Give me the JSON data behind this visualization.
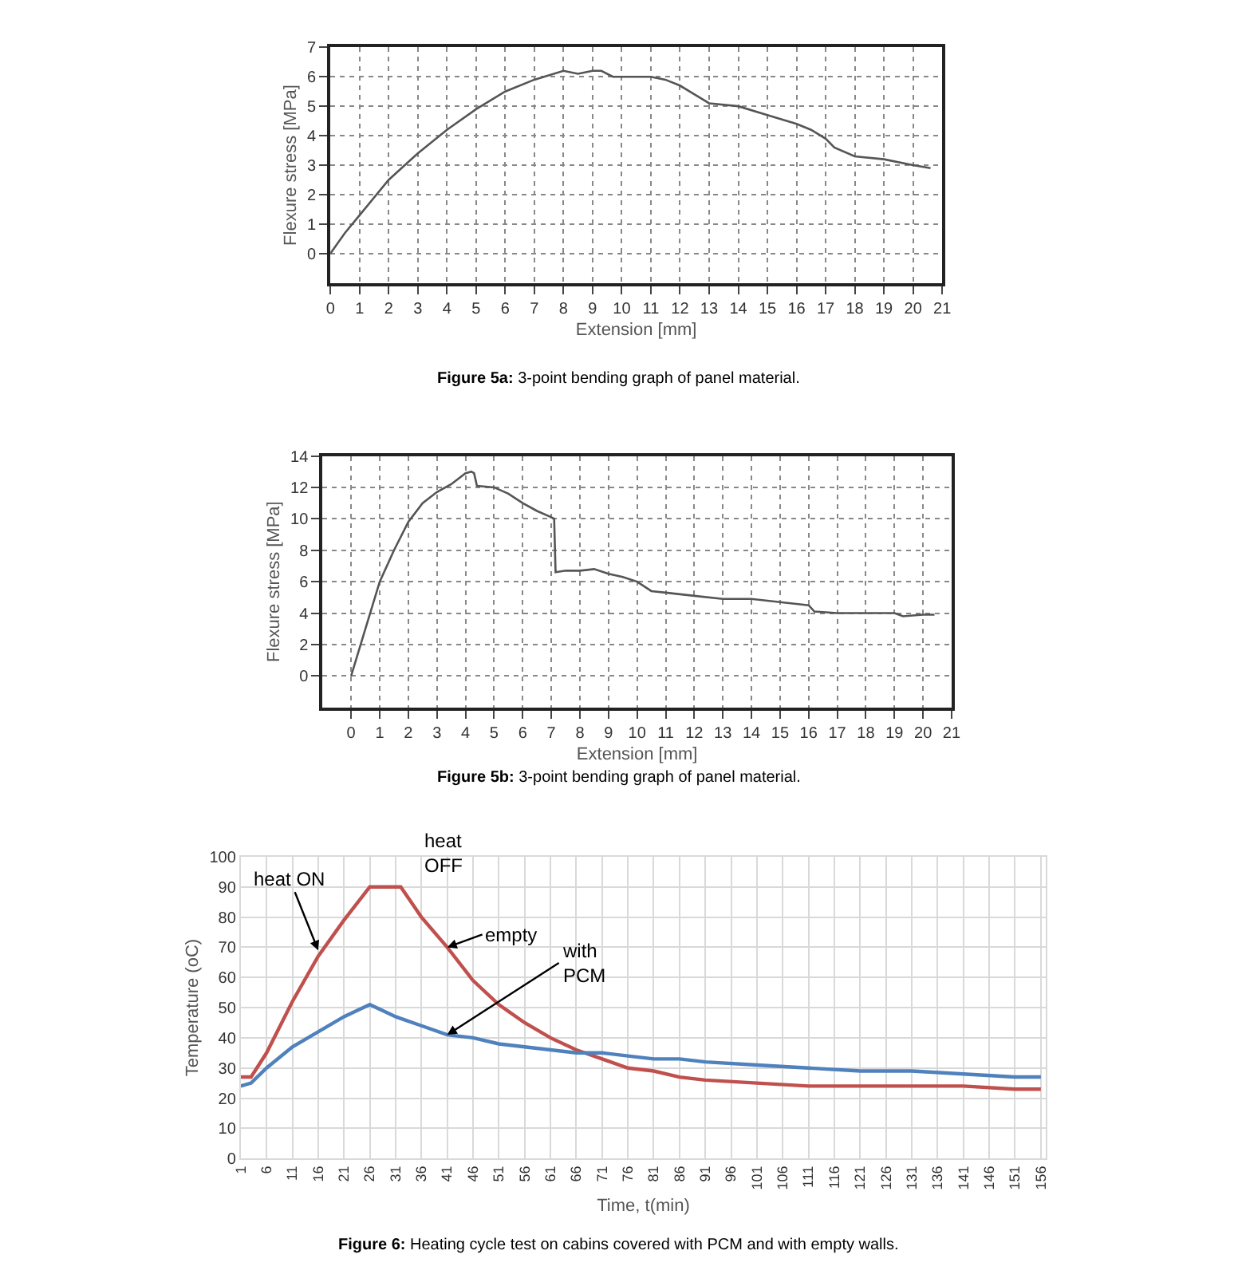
{
  "chart_data": [
    {
      "type": "line",
      "xlabel": "Extension [mm]",
      "ylabel": "Flexure stress [MPa]",
      "xlim": [
        0,
        21
      ],
      "xticks": [
        0,
        1,
        2,
        3,
        4,
        5,
        6,
        7,
        8,
        9,
        10,
        11,
        12,
        13,
        14,
        15,
        16,
        17,
        18,
        19,
        20,
        21
      ],
      "ylim": [
        -1,
        7
      ],
      "yticks": [
        0,
        1,
        2,
        3,
        4,
        5,
        6,
        7
      ],
      "grid": true,
      "legend": false,
      "marker": "none",
      "line_style": "solid",
      "series": [
        {
          "color": "#555555",
          "x": [
            0,
            0.5,
            1,
            2,
            3,
            4,
            5,
            6,
            7,
            8,
            8.5,
            9,
            9.3,
            9.7,
            10,
            11,
            11.5,
            12,
            12.5,
            13,
            14,
            15,
            16,
            16.5,
            17,
            17.3,
            18,
            19,
            20,
            20.6
          ],
          "values": [
            0,
            0.7,
            1.3,
            2.5,
            3.4,
            4.2,
            4.9,
            5.5,
            5.9,
            6.2,
            6.1,
            6.2,
            6.2,
            6.0,
            6.0,
            6.0,
            5.9,
            5.7,
            5.4,
            5.1,
            5.0,
            4.7,
            4.4,
            4.2,
            3.9,
            3.6,
            3.3,
            3.2,
            3.0,
            2.9
          ]
        }
      ],
      "annotations": [
        "Figure 5a: 3-point bending graph of panel material."
      ]
    },
    {
      "type": "line",
      "xlabel": "Extension [mm]",
      "ylabel": "Flexure stress [MPa]",
      "xlim": [
        -1,
        21
      ],
      "xticks": [
        0,
        1,
        2,
        3,
        4,
        5,
        6,
        7,
        8,
        9,
        10,
        11,
        12,
        13,
        14,
        15,
        16,
        17,
        18,
        19,
        20,
        21
      ],
      "ylim": [
        -2,
        14
      ],
      "yticks": [
        0,
        2,
        4,
        6,
        8,
        10,
        12,
        14
      ],
      "grid": true,
      "legend": false,
      "marker": "none",
      "line_style": "solid",
      "series": [
        {
          "color": "#555555",
          "x": [
            0,
            0.5,
            1,
            1.5,
            2,
            2.5,
            3,
            3.5,
            4,
            4.2,
            4.3,
            4.4,
            5,
            5.5,
            6,
            6.5,
            7,
            7.1,
            7.15,
            7.5,
            8,
            8.5,
            9,
            9.5,
            10,
            10.5,
            11,
            12,
            13,
            14,
            15,
            16,
            16.2,
            17,
            18,
            19,
            19.3,
            20,
            20.4
          ],
          "values": [
            0,
            3,
            6,
            8,
            9.8,
            11,
            11.7,
            12.2,
            12.9,
            13,
            12.9,
            12.1,
            12,
            11.6,
            11,
            10.5,
            10.1,
            10,
            6.6,
            6.7,
            6.7,
            6.8,
            6.5,
            6.3,
            6,
            5.4,
            5.3,
            5.1,
            4.9,
            4.9,
            4.7,
            4.5,
            4.1,
            4.0,
            4.0,
            4.0,
            3.8,
            3.9,
            3.9
          ]
        }
      ],
      "annotations": [
        "Figure 5b: 3-point bending graph of panel material."
      ]
    },
    {
      "type": "line",
      "xlabel": "Time, t(min)",
      "ylabel": "Temperature (oC)",
      "xlim": [
        1,
        157
      ],
      "xticks": [
        1,
        6,
        11,
        16,
        21,
        26,
        31,
        36,
        41,
        46,
        51,
        56,
        61,
        66,
        71,
        76,
        81,
        86,
        91,
        96,
        101,
        106,
        111,
        116,
        121,
        126,
        131,
        136,
        141,
        146,
        151,
        156
      ],
      "ylim": [
        0,
        100
      ],
      "yticks": [
        0,
        10,
        20,
        30,
        40,
        50,
        60,
        70,
        80,
        90,
        100
      ],
      "grid": true,
      "legend": false,
      "marker": "none",
      "line_style": "solid",
      "series": [
        {
          "name": "empty",
          "color": "#c0504d",
          "x": [
            1,
            3,
            6,
            11,
            16,
            21,
            26,
            32,
            36,
            41,
            46,
            51,
            56,
            61,
            66,
            71,
            76,
            81,
            86,
            91,
            101,
            111,
            121,
            131,
            141,
            151,
            156
          ],
          "values": [
            27,
            27,
            35,
            52,
            67,
            79,
            90,
            90,
            80,
            70,
            59,
            51,
            45,
            40,
            36,
            33,
            30,
            29,
            27,
            26,
            25,
            24,
            24,
            24,
            24,
            23,
            23
          ]
        },
        {
          "name": "with PCM",
          "color": "#4f81bd",
          "x": [
            1,
            3,
            6,
            11,
            16,
            21,
            26,
            31,
            36,
            41,
            46,
            51,
            56,
            61,
            66,
            71,
            76,
            81,
            86,
            91,
            101,
            111,
            121,
            131,
            141,
            151,
            156
          ],
          "values": [
            24,
            25,
            30,
            37,
            42,
            47,
            51,
            47,
            44,
            41,
            40,
            38,
            37,
            36,
            35,
            35,
            34,
            33,
            33,
            32,
            31,
            30,
            29,
            29,
            28,
            27,
            27
          ]
        }
      ],
      "annotations": [
        {
          "text": "heat ON",
          "x": 16,
          "y": 69
        },
        "heat OFF",
        "Figure 6: Heating cycle test on cabins covered with PCM and with empty walls."
      ]
    }
  ]
}
